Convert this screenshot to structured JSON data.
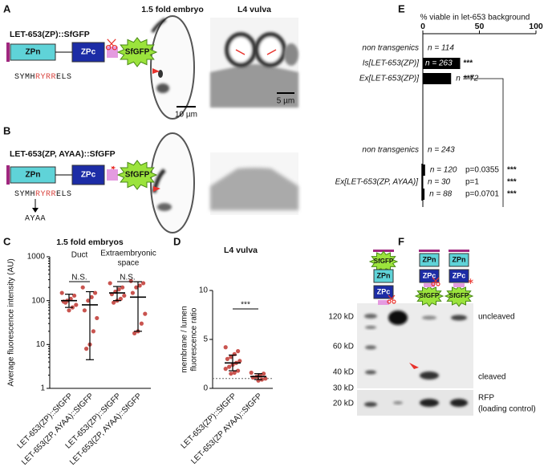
{
  "panel_labels": [
    "A",
    "B",
    "C",
    "D",
    "E",
    "F"
  ],
  "panel_a": {
    "title": "LET-653(ZP)::SfGFP",
    "domains": [
      "ZPn",
      "ZPc",
      "SfGFP"
    ],
    "sequence": [
      "SYMH",
      "RYRR",
      "ELS"
    ],
    "image_titles": [
      "1.5 fold embryo",
      "L4 vulva"
    ],
    "scale_bars": [
      "10 µm",
      "5 µm"
    ]
  },
  "panel_b": {
    "title": "LET-653(ZP, AYAA)::SfGFP",
    "domains": [
      "ZPn",
      "ZPc",
      "SfGFP"
    ],
    "sequence": [
      "SYMH",
      "RYRR",
      "ELS"
    ],
    "mutation": "AYAA"
  },
  "chart_data": [
    {
      "type": "strip",
      "title": "1.5 fold embryos",
      "groups": [
        "Duct",
        "Extraembryonic",
        "space"
      ],
      "significance": [
        "N.S.",
        "N.S."
      ],
      "ylabel": "Average fluorescence intensity (AU)",
      "categories": [
        "LET-653(ZP)::SfGFP",
        "LET-653(ZP, AYAA)::SfGFP",
        "LET-653(ZP)::SfGFP",
        "LET-653(ZP, AYAA)::SfGFP"
      ],
      "log": true,
      "ylim": [
        1,
        1000
      ],
      "yticks": [
        1,
        10,
        100,
        1000
      ],
      "color": "#c9544f",
      "points": [
        [
          150,
          130,
          110,
          100,
          95,
          80,
          70,
          60,
          90
        ],
        [
          200,
          150,
          120,
          100,
          60,
          40,
          20,
          10,
          8
        ],
        [
          250,
          200,
          180,
          160,
          140,
          130,
          110,
          100,
          90
        ],
        [
          280,
          250,
          220,
          200,
          150,
          50,
          30,
          20,
          18
        ]
      ],
      "means": [
        100,
        80,
        150,
        120
      ],
      "sd_low": [
        70,
        4.5,
        100,
        20
      ],
      "sd_high": [
        140,
        160,
        210,
        270
      ]
    },
    {
      "type": "strip",
      "title": "L4 vulva",
      "ylabel": [
        "membrane / lumen",
        "fluorescence ratio"
      ],
      "categories": [
        "LET-653(ZP)::SfGFP",
        "LET-653(ZP AYAA)::SfGFP"
      ],
      "significance": [
        "***"
      ],
      "log": false,
      "ylim": [
        0,
        10
      ],
      "yticks": [
        0,
        5,
        10
      ],
      "reference_line": 1,
      "color": "#c9544f",
      "points": [
        [
          4.2,
          3.8,
          3.5,
          3.2,
          3.0,
          2.8,
          2.6,
          2.4,
          2.2,
          2.0,
          1.8,
          1.6,
          1.5
        ],
        [
          1.6,
          1.5,
          1.3,
          1.2,
          1.1,
          1.0,
          0.9,
          0.8
        ]
      ],
      "means": [
        2.6,
        1.2
      ],
      "sd_low": [
        1.8,
        0.9
      ],
      "sd_high": [
        3.4,
        1.5
      ]
    },
    {
      "type": "hbar",
      "title": "% viable in let-653 background",
      "xlim": [
        0,
        100
      ],
      "xticks": [
        0,
        50,
        100
      ],
      "color": "#000000",
      "group_label": "Ex[LET-653(ZP, AYAA)]",
      "rows": [
        {
          "label": "non transgenics",
          "n": "n = 114",
          "value": 0
        },
        {
          "label": "Is[LET-653(ZP)]",
          "n": "n = 263",
          "value": 33,
          "sig": "***"
        },
        {
          "label": "Ex[LET-653(ZP)]",
          "n": "n = 72",
          "value": 25,
          "sig": "***"
        },
        {
          "label": "non transgenics",
          "n": "n = 243",
          "value": 0
        },
        {
          "label": null,
          "n": "n = 120",
          "value": 2,
          "p": "p=0.0355",
          "sig": "***"
        },
        {
          "label": null,
          "n": "n = 30",
          "value": 0,
          "p": "p=1",
          "sig": "***"
        },
        {
          "label": null,
          "n": "n = 88",
          "value": 1.5,
          "p": "p=0.0701",
          "sig": "***"
        }
      ]
    }
  ],
  "panel_f": {
    "constructs": [
      [
        "SfGFP",
        "ZPn",
        "ZPc"
      ],
      [
        "ZPn",
        "ZPc",
        "SfGFP"
      ],
      [
        "ZPn",
        "ZPc",
        "SfGFP"
      ]
    ],
    "markers": [
      "120 kD",
      "60 kD",
      "40 kD",
      "30 kD",
      "20 kD"
    ],
    "bands": [
      "uncleaved",
      "cleaved"
    ],
    "loading": [
      "RFP",
      "(loading control)"
    ]
  }
}
